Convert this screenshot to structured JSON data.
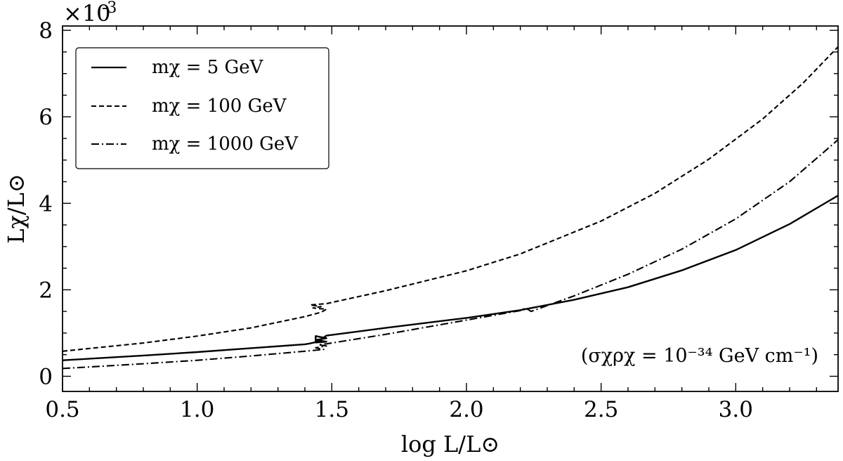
{
  "chart_data": {
    "type": "line",
    "title": "",
    "xlabel": "log L/L⊙",
    "ylabel": "Lχ/L⊙",
    "xlim": [
      0.5,
      3.38
    ],
    "ylim": [
      -0.00035,
      0.0081
    ],
    "y_multiplier": "×10",
    "y_multiplier_exp": "-3",
    "x_ticks": [
      0.5,
      1.0,
      1.5,
      2.0,
      2.5,
      3.0
    ],
    "x_tick_labels": [
      "0.5",
      "1.0",
      "1.5",
      "2.0",
      "2.5",
      "3.0"
    ],
    "y_ticks": [
      0,
      0.002,
      0.004,
      0.006,
      0.008
    ],
    "y_tick_labels": [
      "0",
      "2",
      "4",
      "6",
      "8"
    ],
    "annotation": "(σχρχ = 10⁻³⁴ GeV cm⁻¹)",
    "legend_location": "upper-left",
    "series": [
      {
        "name": "mχ = 5 GeV",
        "style": "solid",
        "x": [
          0.5,
          0.8,
          1.0,
          1.2,
          1.4,
          1.42,
          1.44,
          1.44,
          1.48,
          1.44,
          1.48,
          1.44,
          1.48,
          1.7,
          2.0,
          2.2,
          2.4,
          2.6,
          2.8,
          3.0,
          3.2,
          3.38
        ],
        "y": [
          0.00037,
          0.00048,
          0.00056,
          0.00065,
          0.00074,
          0.00076,
          0.00079,
          0.00093,
          0.00088,
          0.00084,
          0.0008,
          0.00078,
          0.00094,
          0.00112,
          0.00135,
          0.00153,
          0.00177,
          0.00206,
          0.00245,
          0.00292,
          0.00352,
          0.00418
        ]
      },
      {
        "name": "mχ = 100 GeV",
        "style": "dashed",
        "x": [
          0.5,
          0.8,
          1.0,
          1.2,
          1.4,
          1.46,
          1.48,
          1.43,
          1.46,
          1.42,
          1.48,
          1.7,
          2.0,
          2.2,
          2.5,
          2.7,
          2.9,
          3.1,
          3.25,
          3.38
        ],
        "y": [
          0.00058,
          0.00077,
          0.00093,
          0.00112,
          0.00138,
          0.00148,
          0.00155,
          0.00158,
          0.00161,
          0.00165,
          0.00168,
          0.00198,
          0.00244,
          0.00283,
          0.00359,
          0.00423,
          0.00502,
          0.00595,
          0.00678,
          0.00762
        ]
      },
      {
        "name": "mχ = 1000 GeV",
        "style": "dashdot",
        "x": [
          0.5,
          0.8,
          1.0,
          1.2,
          1.4,
          1.47,
          1.44,
          1.48,
          1.45,
          1.48,
          1.7,
          2.0,
          2.2,
          2.22,
          2.24,
          2.4,
          2.6,
          2.8,
          3.0,
          3.2,
          3.38
        ],
        "y": [
          0.00018,
          0.00029,
          0.00037,
          0.00047,
          0.00058,
          0.00062,
          0.00066,
          0.0007,
          0.00073,
          0.00075,
          0.00097,
          0.0013,
          0.00152,
          0.00158,
          0.0015,
          0.00186,
          0.00236,
          0.00294,
          0.00364,
          0.0045,
          0.00547
        ]
      }
    ]
  }
}
